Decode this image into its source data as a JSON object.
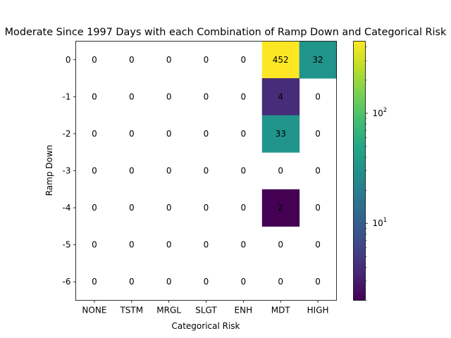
{
  "chart_data": {
    "type": "heatmap",
    "title": "Moderate Since 1997 Days with each Combination of Ramp Down and Categorical Risk",
    "xlabel": "Categorical Risk",
    "ylabel": "Ramp Down",
    "x_categories": [
      "NONE",
      "TSTM",
      "MRGL",
      "SLGT",
      "ENH",
      "MDT",
      "HIGH"
    ],
    "y_categories": [
      "0",
      "-1",
      "-2",
      "-3",
      "-4",
      "-5",
      "-6"
    ],
    "values": [
      [
        0,
        0,
        0,
        0,
        0,
        452,
        32
      ],
      [
        0,
        0,
        0,
        0,
        0,
        4,
        0
      ],
      [
        0,
        0,
        0,
        0,
        0,
        33,
        0
      ],
      [
        0,
        0,
        0,
        0,
        0,
        0,
        0
      ],
      [
        0,
        0,
        0,
        0,
        0,
        2,
        0
      ],
      [
        0,
        0,
        0,
        0,
        0,
        0,
        0
      ],
      [
        0,
        0,
        0,
        0,
        0,
        0,
        0
      ]
    ],
    "color_scale": "log",
    "colormap": "viridis",
    "zero_cells": "blank",
    "colorbar": {
      "position": "right",
      "ticks": [
        {
          "value": 10,
          "base": "10",
          "exp": "1"
        },
        {
          "value": 100,
          "base": "10",
          "exp": "2"
        }
      ]
    },
    "grid": false
  }
}
